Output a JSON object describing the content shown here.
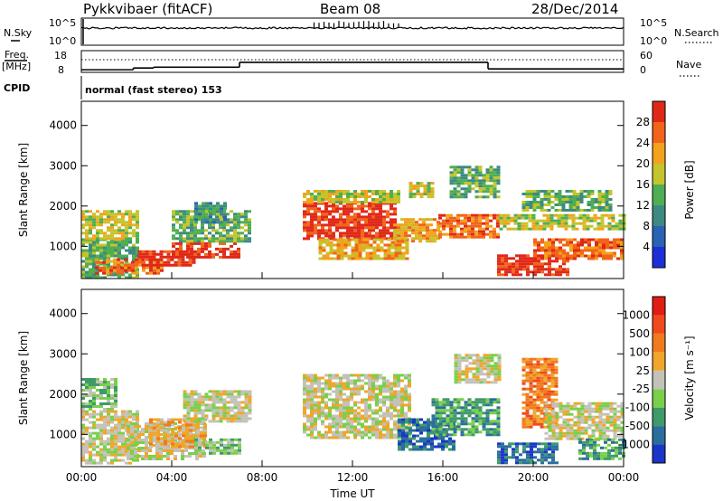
{
  "header": {
    "station": "Pykkvibaer (fitACF)",
    "beam": "Beam 08",
    "date": "28/Dec/2014"
  },
  "status_panels": {
    "nsky": {
      "label": "N.Sky",
      "ticks": [
        "10^5",
        "10^0"
      ]
    },
    "nsearch": {
      "label": "N.Search",
      "ticks": [
        "10^5",
        "10^0"
      ]
    },
    "freq": {
      "label_top": "Freq.",
      "label_bottom": "[MHz]",
      "ticks": [
        "18",
        "8"
      ]
    },
    "nave": {
      "label": "Nave",
      "ticks": [
        "60",
        "0"
      ]
    },
    "cpid": {
      "label": "CPID",
      "mode": "normal (fast stereo) 153"
    }
  },
  "chart_data": [
    {
      "type": "heatmap",
      "name": "power",
      "xlabel": "",
      "ylabel": "Slant Range [km]",
      "x_ticks": [
        "00:00",
        "04:00",
        "08:00",
        "12:00",
        "16:00",
        "20:00",
        "00:00"
      ],
      "xlim_hours": [
        0,
        24
      ],
      "ylim": [
        200,
        4600
      ],
      "y_ticks": [
        1000,
        2000,
        3000,
        4000
      ],
      "colorbar": {
        "label": "Power [dB]",
        "ticks": [
          4,
          8,
          12,
          16,
          20,
          24,
          28
        ],
        "colors": [
          "#1f2fd8",
          "#2a62b4",
          "#3c8a82",
          "#4fae52",
          "#c5c42c",
          "#f2a21c",
          "#f2641a",
          "#e02818"
        ]
      },
      "regions": [
        {
          "t": [
            0.0,
            2.5
          ],
          "r": [
            250,
            1200
          ],
          "level": 3
        },
        {
          "t": [
            0.0,
            2.5
          ],
          "r": [
            1200,
            1900
          ],
          "level": 4
        },
        {
          "t": [
            0.6,
            3.5
          ],
          "r": [
            350,
            700
          ],
          "level": 6
        },
        {
          "t": [
            2.5,
            5.0
          ],
          "r": [
            500,
            900
          ],
          "level": 7
        },
        {
          "t": [
            4.0,
            7.0
          ],
          "r": [
            700,
            1100
          ],
          "level": 7
        },
        {
          "t": [
            4.0,
            7.5
          ],
          "r": [
            1100,
            1900
          ],
          "level": 3
        },
        {
          "t": [
            5.0,
            6.3
          ],
          "r": [
            1600,
            2100
          ],
          "level": 2
        },
        {
          "t": [
            9.8,
            13.8
          ],
          "r": [
            1200,
            2100
          ],
          "level": 7
        },
        {
          "t": [
            9.8,
            14.0
          ],
          "r": [
            2100,
            2400
          ],
          "level": 4
        },
        {
          "t": [
            10.5,
            14.5
          ],
          "r": [
            700,
            1200
          ],
          "level": 5
        },
        {
          "t": [
            13.8,
            15.8
          ],
          "r": [
            1100,
            1700
          ],
          "level": 5
        },
        {
          "t": [
            14.5,
            15.5
          ],
          "r": [
            2200,
            2600
          ],
          "level": 4
        },
        {
          "t": [
            15.8,
            18.5
          ],
          "r": [
            1200,
            1800
          ],
          "level": 6
        },
        {
          "t": [
            16.3,
            18.5
          ],
          "r": [
            2200,
            3000
          ],
          "level": 3
        },
        {
          "t": [
            18.5,
            24.0
          ],
          "r": [
            1400,
            1800
          ],
          "level": 4
        },
        {
          "t": [
            18.4,
            21.5
          ],
          "r": [
            300,
            800
          ],
          "level": 7
        },
        {
          "t": [
            20.0,
            24.0
          ],
          "r": [
            700,
            1200
          ],
          "level": 6
        },
        {
          "t": [
            19.5,
            23.5
          ],
          "r": [
            1900,
            2400
          ],
          "level": 3
        }
      ]
    },
    {
      "type": "heatmap",
      "name": "velocity",
      "xlabel": "Time UT",
      "ylabel": "Slant Range [km]",
      "x_ticks": [
        "00:00",
        "04:00",
        "08:00",
        "12:00",
        "16:00",
        "20:00",
        "00:00"
      ],
      "xlim_hours": [
        0,
        24
      ],
      "ylim": [
        200,
        4600
      ],
      "y_ticks": [
        1000,
        2000,
        3000,
        4000
      ],
      "colorbar": {
        "label": "Velocity [m s⁻¹]",
        "ticks": [
          1000,
          500,
          100,
          25,
          -25,
          -100,
          -500,
          -1000
        ],
        "colors": [
          "#1a36c8",
          "#2b6e9e",
          "#3f9a6a",
          "#79d04a",
          "#c4c2b8",
          "#f0a62a",
          "#f07a1e",
          "#f04a1c",
          "#e01e14"
        ]
      },
      "regions": [
        {
          "t": [
            0.0,
            2.5
          ],
          "r": [
            300,
            1600
          ],
          "level": 4
        },
        {
          "t": [
            0.0,
            1.5
          ],
          "r": [
            1600,
            2400
          ],
          "level": 3
        },
        {
          "t": [
            2.0,
            5.5
          ],
          "r": [
            400,
            1300
          ],
          "level": 4
        },
        {
          "t": [
            3.0,
            5.5
          ],
          "r": [
            700,
            1400
          ],
          "level": 5
        },
        {
          "t": [
            4.5,
            7.5
          ],
          "r": [
            1300,
            2100
          ],
          "level": 4
        },
        {
          "t": [
            5.0,
            7.0
          ],
          "r": [
            500,
            900
          ],
          "level": 3
        },
        {
          "t": [
            9.8,
            14.5
          ],
          "r": [
            900,
            2500
          ],
          "level": 4
        },
        {
          "t": [
            14.0,
            16.5
          ],
          "r": [
            600,
            1400
          ],
          "level": 1
        },
        {
          "t": [
            15.5,
            18.5
          ],
          "r": [
            1000,
            1900
          ],
          "level": 2
        },
        {
          "t": [
            16.5,
            18.5
          ],
          "r": [
            2300,
            3000
          ],
          "level": 4
        },
        {
          "t": [
            18.4,
            21.0
          ],
          "r": [
            300,
            800
          ],
          "level": 1
        },
        {
          "t": [
            19.5,
            21.0
          ],
          "r": [
            1200,
            2900
          ],
          "level": 6
        },
        {
          "t": [
            20.5,
            24.0
          ],
          "r": [
            900,
            1800
          ],
          "level": 4
        },
        {
          "t": [
            22.0,
            24.0
          ],
          "r": [
            400,
            900
          ],
          "level": 2
        }
      ]
    },
    {
      "type": "line",
      "name": "freq",
      "ylim": [
        8,
        18
      ],
      "segments": [
        {
          "t": [
            0.0,
            2.3
          ],
          "v": 9.2
        },
        {
          "t": [
            2.3,
            3.2
          ],
          "v": 10.0
        },
        {
          "t": [
            3.2,
            7.0
          ],
          "v": 10.4
        },
        {
          "t": [
            7.0,
            18.0
          ],
          "v": 12.6
        },
        {
          "t": [
            18.0,
            24.0
          ],
          "v": 9.6
        }
      ]
    }
  ]
}
